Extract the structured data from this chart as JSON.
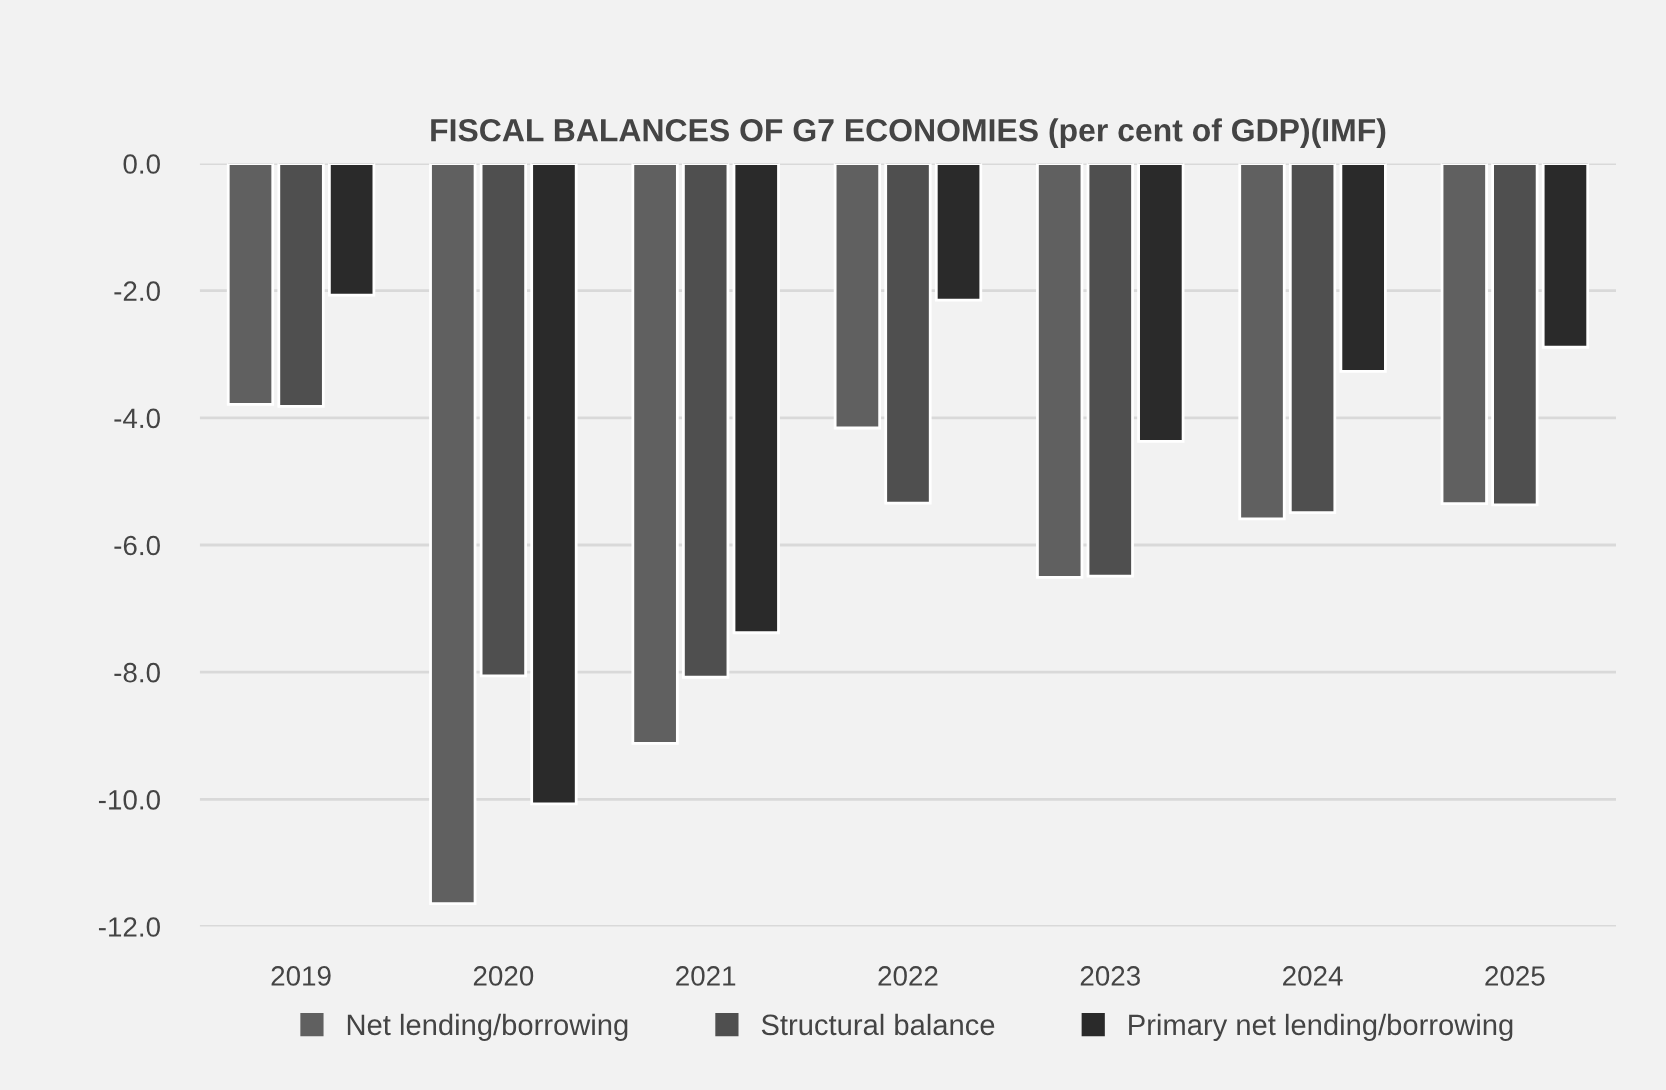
{
  "chart_data": {
    "type": "bar",
    "title": "FISCAL BALANCES OF G7 ECONOMIES (per cent of GDP)(IMF)",
    "categories": [
      "2019",
      "2020",
      "2021",
      "2022",
      "2023",
      "2024",
      "2025"
    ],
    "series": [
      {
        "name": "Net lending/borrowing",
        "color": "#606060",
        "values": [
          -3.79,
          -11.64,
          -9.12,
          -4.16,
          -6.51,
          -5.59,
          -5.35
        ]
      },
      {
        "name": "Structural balance",
        "color": "#4f4f4f",
        "values": [
          -3.82,
          -8.06,
          -8.08,
          -5.34,
          -6.49,
          -5.49,
          -5.37
        ]
      },
      {
        "name": "Primary net lending/borrowing",
        "color": "#2a2a2a",
        "values": [
          -2.07,
          -10.07,
          -7.38,
          -2.15,
          -4.37,
          -3.27,
          -2.89
        ]
      }
    ],
    "ylim": [
      -12,
      0
    ],
    "yticks": [
      {
        "value": -12,
        "label": "-12.0"
      },
      {
        "value": -10,
        "label": "-10.0"
      },
      {
        "value": -8,
        "label": "-8.0"
      },
      {
        "value": -6,
        "label": "-6.0"
      },
      {
        "value": -4,
        "label": "-4.0"
      },
      {
        "value": -2,
        "label": "-2.0"
      },
      {
        "value": 0,
        "label": "0.0"
      }
    ],
    "grid": "y",
    "legend": "bottom"
  }
}
